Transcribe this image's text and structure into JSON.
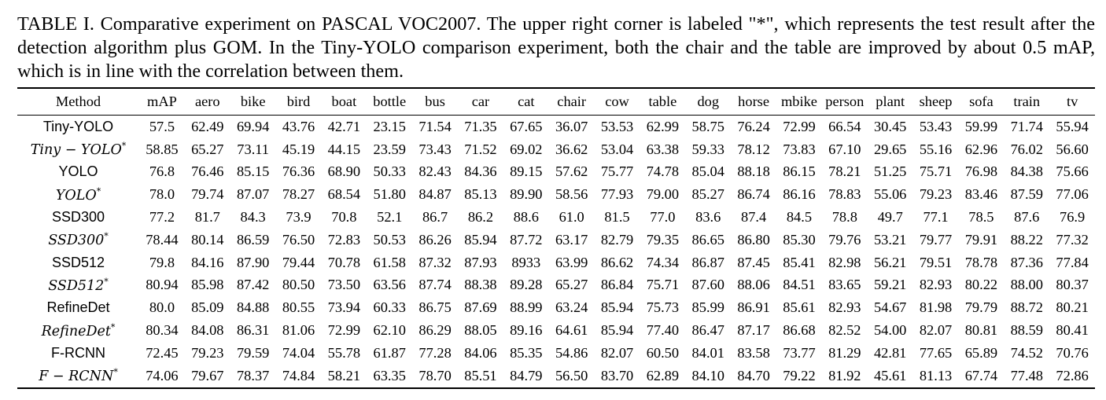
{
  "caption": "TABLE I. Comparative experiment on PASCAL VOC2007. The upper right corner is labeled \"*\", which represents the test result after the detection algorithm plus GOM. In the Tiny-YOLO comparison experiment, both the chair and the table are improved by about 0.5 mAP, which is in line with the correlation between them.",
  "table": {
    "headers": [
      "Method",
      "mAP",
      "aero",
      "bike",
      "bird",
      "boat",
      "bottle",
      "bus",
      "car",
      "cat",
      "chair",
      "cow",
      "table",
      "dog",
      "horse",
      "mbike",
      "person",
      "plant",
      "sheep",
      "sofa",
      "train",
      "tv"
    ],
    "bold_headers": [
      "chair",
      "table"
    ],
    "rows": [
      {
        "method": "Tiny-YOLO",
        "star": false,
        "values": [
          "57.5",
          "62.49",
          "69.94",
          "43.76",
          "42.71",
          "23.15",
          "71.54",
          "71.35",
          "67.65",
          "36.07",
          "53.53",
          "62.99",
          "58.75",
          "76.24",
          "72.99",
          "66.54",
          "30.45",
          "53.43",
          "59.99",
          "71.74",
          "55.94"
        ]
      },
      {
        "method": "Tiny − YOLO",
        "star": true,
        "values": [
          "58.85",
          "65.27",
          "73.11",
          "45.19",
          "44.15",
          "23.59",
          "73.43",
          "71.52",
          "69.02",
          "36.62",
          "53.04",
          "63.38",
          "59.33",
          "78.12",
          "73.83",
          "67.10",
          "29.65",
          "55.16",
          "62.96",
          "76.02",
          "56.60"
        ]
      },
      {
        "method": "YOLO",
        "star": false,
        "values": [
          "76.8",
          "76.46",
          "85.15",
          "76.36",
          "68.90",
          "50.33",
          "82.43",
          "84.36",
          "89.15",
          "57.62",
          "75.77",
          "74.78",
          "85.04",
          "88.18",
          "86.15",
          "78.21",
          "51.25",
          "75.71",
          "76.98",
          "84.38",
          "75.66"
        ]
      },
      {
        "method": "YOLO",
        "star": true,
        "values": [
          "78.0",
          "79.74",
          "87.07",
          "78.27",
          "68.54",
          "51.80",
          "84.87",
          "85.13",
          "89.90",
          "58.56",
          "77.93",
          "79.00",
          "85.27",
          "86.74",
          "86.16",
          "78.83",
          "55.06",
          "79.23",
          "83.46",
          "87.59",
          "77.06"
        ]
      },
      {
        "method": "SSD300",
        "star": false,
        "values": [
          "77.2",
          "81.7",
          "84.3",
          "73.9",
          "70.8",
          "52.1",
          "86.7",
          "86.2",
          "88.6",
          "61.0",
          "81.5",
          "77.0",
          "83.6",
          "87.4",
          "84.5",
          "78.8",
          "49.7",
          "77.1",
          "78.5",
          "87.6",
          "76.9"
        ]
      },
      {
        "method": "SSD300",
        "star": true,
        "values": [
          "78.44",
          "80.14",
          "86.59",
          "76.50",
          "72.83",
          "50.53",
          "86.26",
          "85.94",
          "87.72",
          "63.17",
          "82.79",
          "79.35",
          "86.65",
          "86.80",
          "85.30",
          "79.76",
          "53.21",
          "79.77",
          "79.91",
          "88.22",
          "77.32"
        ]
      },
      {
        "method": "SSD512",
        "star": false,
        "values": [
          "79.8",
          "84.16",
          "87.90",
          "79.44",
          "70.78",
          "61.58",
          "87.32",
          "87.93",
          "8933",
          "63.99",
          "86.62",
          "74.34",
          "86.87",
          "87.45",
          "85.41",
          "82.98",
          "56.21",
          "79.51",
          "78.78",
          "87.36",
          "77.84"
        ]
      },
      {
        "method": "SSD512",
        "star": true,
        "values": [
          "80.94",
          "85.98",
          "87.42",
          "80.50",
          "73.50",
          "63.56",
          "87.74",
          "88.38",
          "89.28",
          "65.27",
          "86.84",
          "75.71",
          "87.60",
          "88.06",
          "84.51",
          "83.65",
          "59.21",
          "82.93",
          "80.22",
          "88.00",
          "80.37"
        ]
      },
      {
        "method": "RefineDet",
        "star": false,
        "values": [
          "80.0",
          "85.09",
          "84.88",
          "80.55",
          "73.94",
          "60.33",
          "86.75",
          "87.69",
          "88.99",
          "63.24",
          "85.94",
          "75.73",
          "85.99",
          "86.91",
          "85.61",
          "82.93",
          "54.67",
          "81.98",
          "79.79",
          "88.72",
          "80.21"
        ]
      },
      {
        "method": "RefineDet",
        "star": true,
        "values": [
          "80.34",
          "84.08",
          "86.31",
          "81.06",
          "72.99",
          "62.10",
          "86.29",
          "88.05",
          "89.16",
          "64.61",
          "85.94",
          "77.40",
          "86.47",
          "87.17",
          "86.68",
          "82.52",
          "54.00",
          "82.07",
          "80.81",
          "88.59",
          "80.41"
        ]
      },
      {
        "method": "F-RCNN",
        "star": false,
        "values": [
          "72.45",
          "79.23",
          "79.59",
          "74.04",
          "55.78",
          "61.87",
          "77.28",
          "84.06",
          "85.35",
          "54.86",
          "82.07",
          "60.50",
          "84.01",
          "83.58",
          "73.77",
          "81.29",
          "42.81",
          "77.65",
          "65.89",
          "74.52",
          "70.76"
        ]
      },
      {
        "method": "F − RCNN",
        "star": true,
        "values": [
          "74.06",
          "79.67",
          "78.37",
          "74.84",
          "58.21",
          "63.35",
          "78.70",
          "85.51",
          "84.79",
          "56.50",
          "83.70",
          "62.89",
          "84.10",
          "84.70",
          "79.22",
          "81.92",
          "45.61",
          "81.13",
          "67.74",
          "77.48",
          "72.86"
        ]
      }
    ]
  }
}
